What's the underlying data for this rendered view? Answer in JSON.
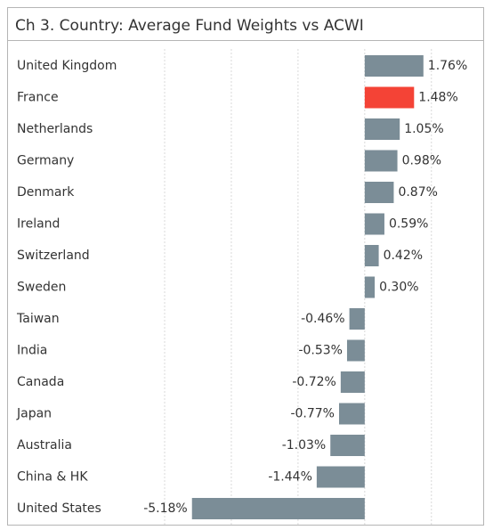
{
  "chart_data": {
    "type": "bar",
    "orientation": "horizontal",
    "title": "Ch 3. Country:  Average Fund Weights vs ACWI",
    "categories": [
      "United Kingdom",
      "France",
      "Netherlands",
      "Germany",
      "Denmark",
      "Ireland",
      "Switzerland",
      "Sweden",
      "Taiwan",
      "India",
      "Canada",
      "Japan",
      "Australia",
      "China & HK",
      "United States"
    ],
    "values": [
      1.76,
      1.48,
      1.05,
      0.98,
      0.87,
      0.59,
      0.42,
      0.3,
      -0.46,
      -0.53,
      -0.72,
      -0.77,
      -1.03,
      -1.44,
      -5.18
    ],
    "value_labels": [
      "1.76%",
      "1.48%",
      "1.05%",
      "0.98%",
      "0.87%",
      "0.59%",
      "0.42%",
      "0.30%",
      "-0.46%",
      "-0.53%",
      "-0.72%",
      "-0.77%",
      "-1.03%",
      "-1.44%",
      "-5.18%"
    ],
    "colors": [
      "#7b8d97",
      "#f44336",
      "#7b8d97",
      "#7b8d97",
      "#7b8d97",
      "#7b8d97",
      "#7b8d97",
      "#7b8d97",
      "#7b8d97",
      "#7b8d97",
      "#7b8d97",
      "#7b8d97",
      "#7b8d97",
      "#7b8d97",
      "#7b8d97"
    ],
    "xlim": [
      -6,
      3.5
    ],
    "xticks": [
      -6,
      -4,
      -2,
      0,
      2
    ],
    "grid": true
  }
}
